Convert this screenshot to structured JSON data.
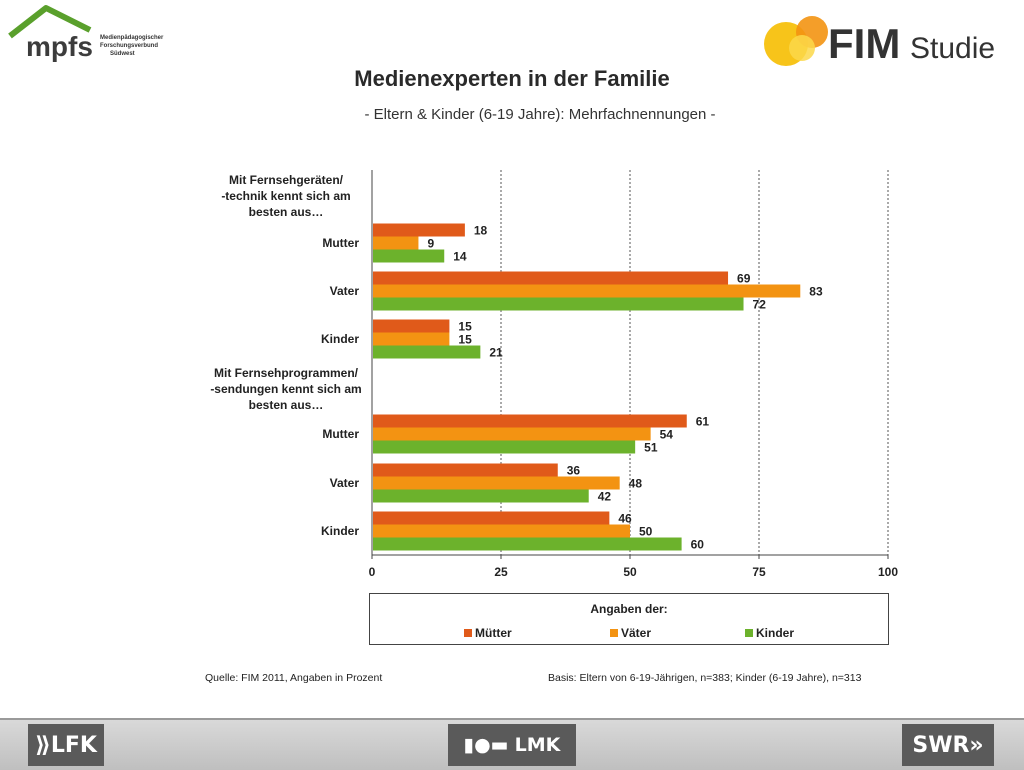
{
  "header": {
    "logo_left_text": "mpfs",
    "logo_left_caption": [
      "Medienpädagogischer",
      "Forschungsverbund",
      "Südwest"
    ],
    "logo_right_text": "FIM",
    "logo_right_subtext": "Studie"
  },
  "title": "Medienexperten in der Familie",
  "subtitle": "- Eltern & Kinder (6-19 Jahre): Mehrfachnennungen -",
  "chart_data": {
    "type": "bar",
    "orientation": "horizontal",
    "groups": [
      {
        "heading": [
          "Mit  Fernsehgeräten/",
          "-technik kennt sich am",
          "besten aus…"
        ],
        "categories": [
          "Mutter",
          "Vater",
          "Kinder"
        ],
        "series": [
          {
            "name": "Mütter",
            "values": [
              18,
              69,
              15
            ]
          },
          {
            "name": "Väter",
            "values": [
              9,
              83,
              15
            ]
          },
          {
            "name": "Kinder",
            "values": [
              14,
              72,
              21
            ]
          }
        ]
      },
      {
        "heading": [
          "Mit  Fernsehprogrammen/",
          "-sendungen kennt sich am",
          "besten aus…"
        ],
        "categories": [
          "Mutter",
          "Vater",
          "Kinder"
        ],
        "series": [
          {
            "name": "Mütter",
            "values": [
              61,
              36,
              46
            ]
          },
          {
            "name": "Väter",
            "values": [
              54,
              48,
              50
            ]
          },
          {
            "name": "Kinder",
            "values": [
              51,
              42,
              60
            ]
          }
        ]
      }
    ],
    "series_colors": [
      "#e05a1a",
      "#f39312",
      "#6cb22c"
    ],
    "xlim": [
      0,
      100
    ],
    "x_ticks": [
      0,
      25,
      50,
      75,
      100
    ],
    "grid": "vertical dashed",
    "legend": {
      "title": "Angaben der:",
      "placement": "bottom",
      "entries": [
        "Mütter",
        "Väter",
        "Kinder"
      ]
    }
  },
  "footer": {
    "source": "Quelle: FIM 2011, Angaben in Prozent",
    "basis": "Basis: Eltern von 6-19-Jährigen, n=383; Kinder (6-19 Jahre), n=313"
  },
  "bottom_bar": {
    "left_logo": "LFK",
    "center_logo": "LMK",
    "right_logo": "SWR"
  }
}
